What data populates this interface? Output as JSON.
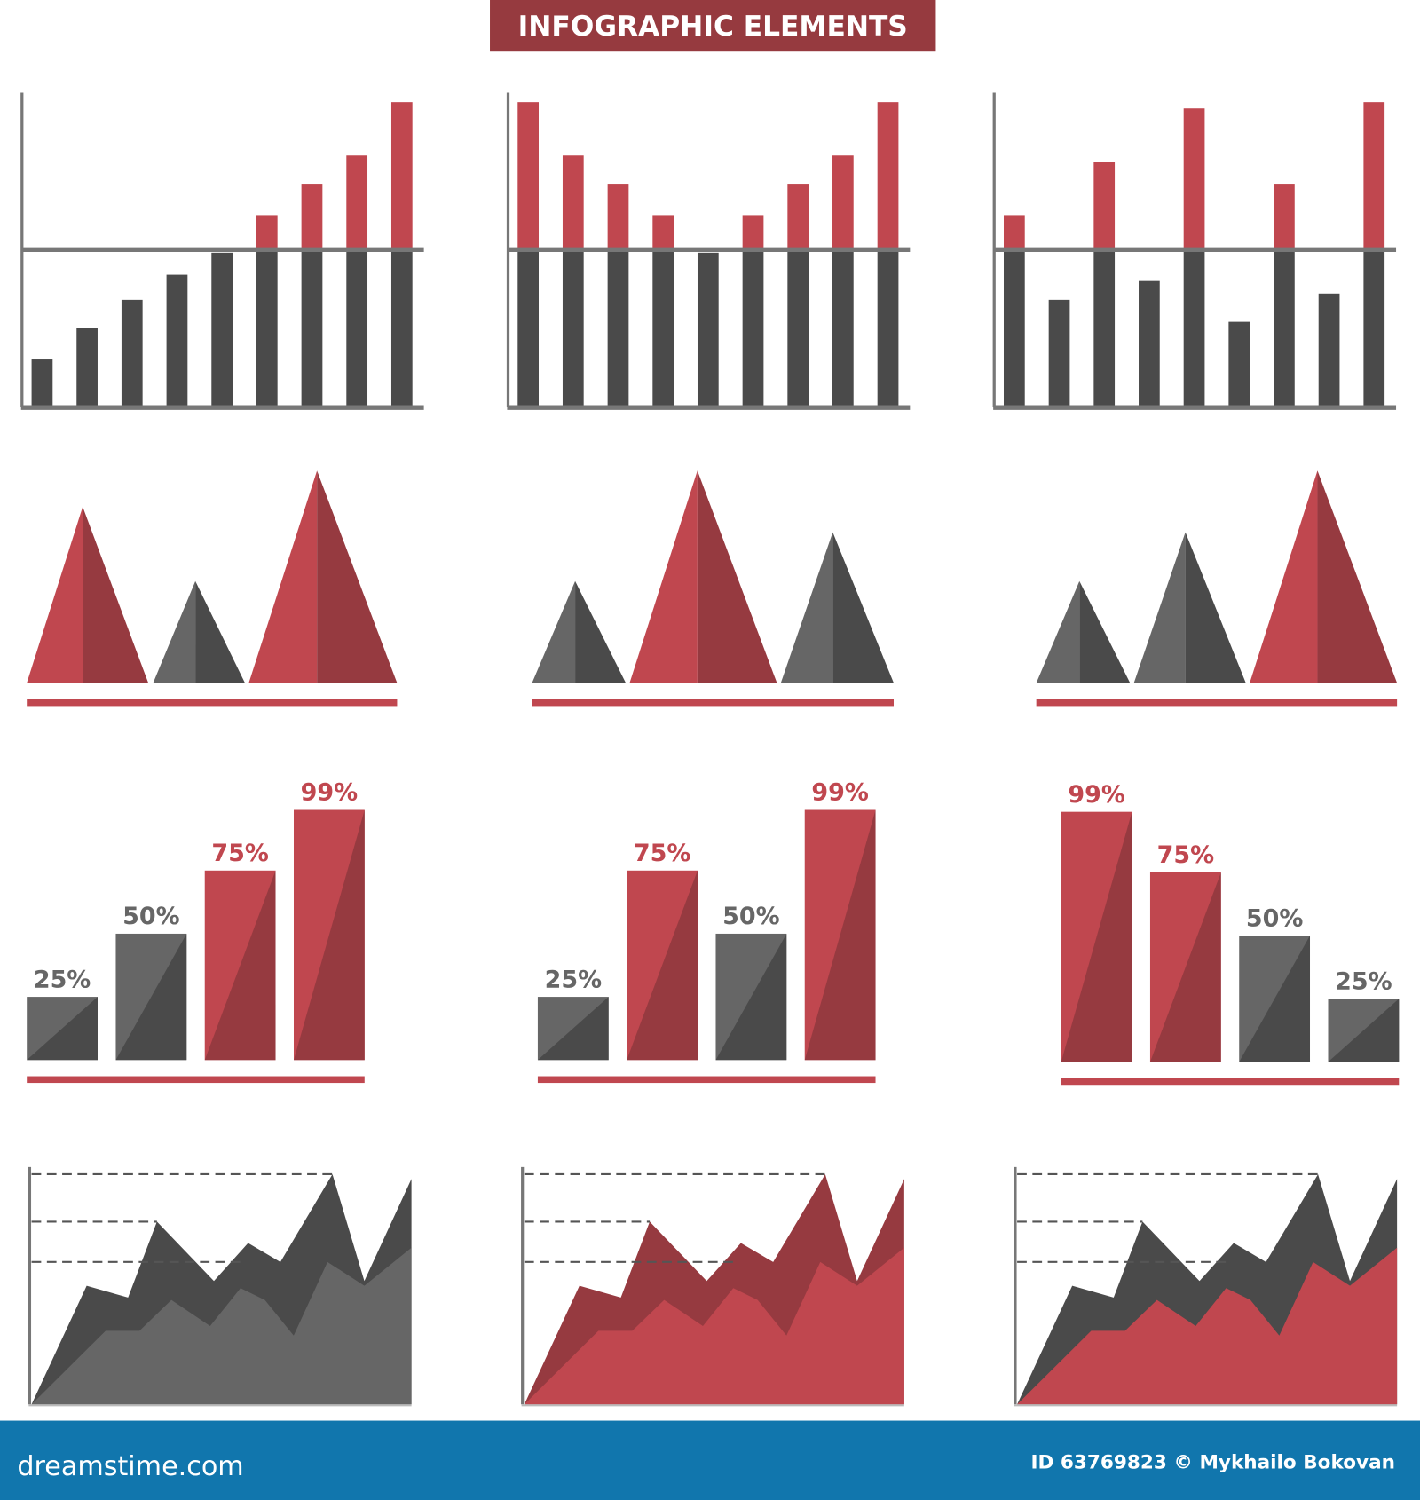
{
  "title": "INFOGRAPHIC ELEMENTS",
  "footer": {
    "logo": "dreamstime.com",
    "credit": "ID 63769823 © Mykhailo Bokovan"
  },
  "colors": {
    "red": "#c0474f",
    "dark_red": "#963a40",
    "dark_gray": "#4a4a4a",
    "gray": "#666666",
    "axis": "#777777",
    "title_bg": "#963a3f",
    "footer_bg": "#1176ad"
  },
  "chart_data": [
    {
      "type": "bar",
      "threshold": 50,
      "ylim": [
        0,
        100
      ],
      "values": [
        15,
        25,
        34,
        42,
        49,
        61,
        71,
        80,
        97
      ]
    },
    {
      "type": "bar",
      "threshold": 50,
      "ylim": [
        0,
        100
      ],
      "values": [
        97,
        80,
        71,
        61,
        49,
        61,
        71,
        80,
        97
      ]
    },
    {
      "type": "bar",
      "threshold": 50,
      "ylim": [
        0,
        100
      ],
      "values": [
        61,
        34,
        78,
        40,
        95,
        27,
        71,
        36,
        97
      ]
    },
    {
      "type": "triangle",
      "values": [
        83,
        48,
        100
      ],
      "colors": [
        "red",
        "gray",
        "red"
      ]
    },
    {
      "type": "triangle",
      "values": [
        48,
        100,
        71
      ],
      "colors": [
        "gray",
        "red",
        "gray"
      ]
    },
    {
      "type": "triangle",
      "values": [
        48,
        71,
        100
      ],
      "colors": [
        "gray",
        "gray",
        "red"
      ]
    },
    {
      "type": "bar",
      "values": [
        25,
        50,
        75,
        99
      ],
      "labels": [
        "25%",
        "50%",
        "75%",
        "99%"
      ],
      "colors": [
        "gray",
        "gray",
        "red",
        "red"
      ]
    },
    {
      "type": "bar",
      "values": [
        25,
        75,
        50,
        99
      ],
      "labels": [
        "25%",
        "75%",
        "50%",
        "99%"
      ],
      "colors": [
        "gray",
        "red",
        "gray",
        "red"
      ]
    },
    {
      "type": "bar",
      "values": [
        99,
        75,
        50,
        25
      ],
      "labels": [
        "99%",
        "75%",
        "50%",
        "25%"
      ],
      "colors": [
        "red",
        "red",
        "gray",
        "gray"
      ]
    },
    {
      "type": "area",
      "levels": [
        97,
        77,
        60
      ],
      "colors": [
        "dark_gray",
        "gray"
      ],
      "series": [
        {
          "x": [
            0,
            14.5,
            25.4,
            33,
            48,
            57,
            65.5,
            79.2,
            87.6,
            100
          ],
          "y": [
            0,
            50,
            45,
            77,
            52,
            68,
            60,
            97,
            52,
            95
          ]
        },
        {
          "x": [
            0,
            19.5,
            28.4,
            36.8,
            47,
            55,
            61.4,
            69,
            77.9,
            87.6,
            100
          ],
          "y": [
            0,
            31,
            31,
            44,
            33,
            49,
            44,
            29,
            60,
            50,
            66
          ]
        }
      ]
    },
    {
      "type": "area",
      "levels": [
        97,
        77,
        60
      ],
      "colors": [
        "dark_red",
        "red"
      ],
      "series": [
        {
          "x": [
            0,
            14.5,
            25.4,
            33,
            48,
            57,
            65.5,
            79.2,
            87.6,
            100
          ],
          "y": [
            0,
            50,
            45,
            77,
            52,
            68,
            60,
            97,
            52,
            95
          ]
        },
        {
          "x": [
            0,
            19.5,
            28.4,
            36.8,
            47,
            55,
            61.4,
            69,
            77.9,
            87.6,
            100
          ],
          "y": [
            0,
            31,
            31,
            44,
            33,
            49,
            44,
            29,
            60,
            50,
            66
          ]
        }
      ]
    },
    {
      "type": "area",
      "levels": [
        97,
        77,
        60
      ],
      "colors": [
        "dark_gray",
        "red"
      ],
      "series": [
        {
          "x": [
            0,
            14.5,
            25.4,
            33,
            48,
            57,
            65.5,
            79.2,
            87.6,
            100
          ],
          "y": [
            0,
            50,
            45,
            77,
            52,
            68,
            60,
            97,
            52,
            95
          ]
        },
        {
          "x": [
            0,
            19.5,
            28.4,
            36.8,
            47,
            55,
            61.4,
            69,
            77.9,
            87.6,
            100
          ],
          "y": [
            0,
            31,
            31,
            44,
            33,
            49,
            44,
            29,
            60,
            50,
            66
          ]
        }
      ]
    }
  ]
}
